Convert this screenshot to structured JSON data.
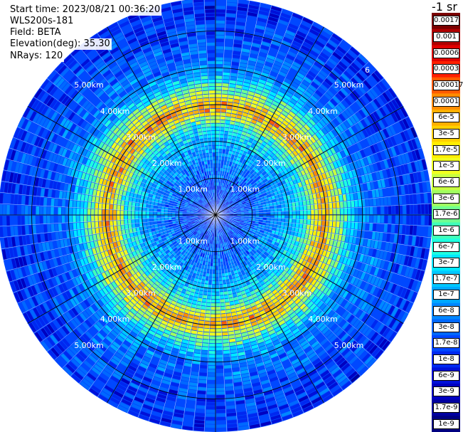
{
  "header": {
    "start_time": "Start time: 2023/08/21 00:36:20",
    "instrument": "WLS200s-181",
    "field": "Field: BETA",
    "elevation": "Elevation(deg): 35.30",
    "nrays": "NRays: 120"
  },
  "colorbar": {
    "unit": "-1 sr",
    "labels": [
      "0.0017",
      "0.001",
      "0.0006",
      "0.0003",
      "0.00017",
      "0.0001",
      "6e-5",
      "3e-5",
      "1.7e-5",
      "1e-5",
      "6e-6",
      "3e-6",
      "1.7e-6",
      "1e-6",
      "6e-7",
      "3e-7",
      "1.7e-7",
      "1e-7",
      "6e-8",
      "3e-8",
      "1.7e-8",
      "1e-8",
      "6e-9",
      "3e-9",
      "1.7e-9",
      "1e-9"
    ],
    "colors": [
      "#7a0000",
      "#b00000",
      "#e00000",
      "#ff2000",
      "#ff5a00",
      "#ff8c00",
      "#ffb000",
      "#ffd000",
      "#ffee00",
      "#f0ff20",
      "#c8ff40",
      "#a0ff60",
      "#70ff90",
      "#40ffb8",
      "#20ffe0",
      "#00e8ff",
      "#00c8ff",
      "#00a8ff",
      "#0088ff",
      "#0068ff",
      "#0048ff",
      "#0028f0",
      "#0010d8",
      "#0000c0",
      "#0000a0",
      "#000080"
    ]
  },
  "chart_data": {
    "type": "heatmap",
    "title": "",
    "xlabel": "",
    "ylabel": "",
    "projection": "polar-ppi",
    "rays": 120,
    "range_rings_km": [
      1.0,
      2.0,
      3.0,
      4.0,
      5.0
    ],
    "range_ring_labels": [
      "1.00km",
      "2.00km",
      "3.00km",
      "4.00km",
      "5.00km",
      "6"
    ],
    "max_range_km": 5.9,
    "radial_profile": [
      {
        "range_km": 0.0,
        "value": 6e-09
      },
      {
        "range_km": 0.5,
        "value": 1.7e-08
      },
      {
        "range_km": 1.0,
        "value": 3e-08
      },
      {
        "range_km": 1.5,
        "value": 6e-08
      },
      {
        "range_km": 2.0,
        "value": 1.7e-07
      },
      {
        "range_km": 2.5,
        "value": 1e-06
      },
      {
        "range_km": 2.8,
        "value": 3e-05
      },
      {
        "range_km": 3.0,
        "value": 6e-05
      },
      {
        "range_km": 3.3,
        "value": 6e-06
      },
      {
        "range_km": 3.7,
        "value": 3e-07
      },
      {
        "range_km": 4.0,
        "value": 6e-08
      },
      {
        "range_km": 5.0,
        "value": 1.7e-08
      },
      {
        "range_km": 5.9,
        "value": 1e-08
      }
    ],
    "color_scale": "log",
    "vmin": 1e-09,
    "vmax": 0.0017
  }
}
